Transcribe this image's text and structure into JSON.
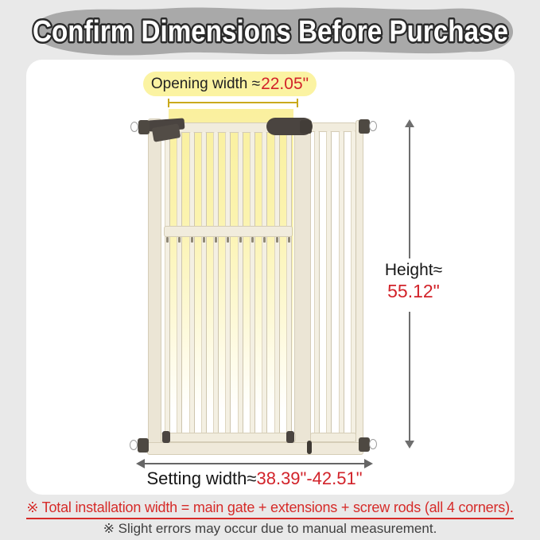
{
  "banner": {
    "title": "Confirm Dimensions Before Purchase"
  },
  "annotations": {
    "opening_width": {
      "label": "Opening width ≈",
      "value": "22.05\""
    },
    "height": {
      "label": "Height≈",
      "value": "55.12\""
    },
    "setting_width": {
      "label": "Setting width≈",
      "value": "38.39\"-42.51\""
    }
  },
  "footnotes": {
    "line1": "※ Total installation width = main gate + extensions + screw rods (all 4 corners).",
    "line2": "※ Slight errors may occur due to manual measurement."
  },
  "gate": {
    "main_bar_count": 11,
    "extension_bar_count": 4,
    "mid_nub_count": 11
  },
  "colors": {
    "accent_red": "#d2232a",
    "highlight_yellow": "#fbf3a2",
    "banner_gray": "#a9a9a9",
    "gate_cream": "#f1ecdd",
    "hardware_dark": "#4a4440",
    "measure_gold": "#c9a91c",
    "page_background": "#e9e9e9"
  }
}
